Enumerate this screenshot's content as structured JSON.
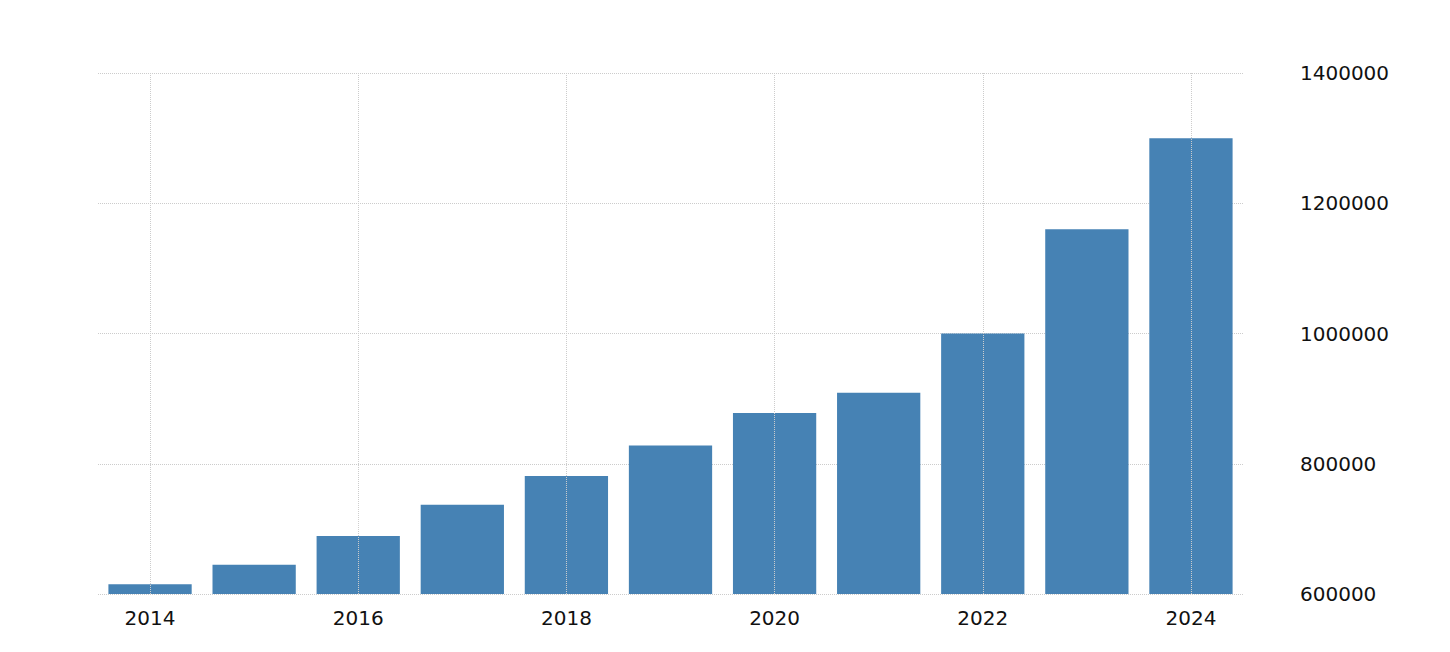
{
  "chart_data": {
    "type": "bar",
    "categories": [
      "2014",
      null,
      "2016",
      null,
      "2018",
      null,
      "2020",
      null,
      "2022",
      null,
      "2024"
    ],
    "values": [
      615000,
      645000,
      689000,
      737000,
      781000,
      828000,
      878000,
      909000,
      1000000,
      1160000,
      1300000
    ],
    "color": "#4682b4",
    "ylim": [
      600000,
      1400000
    ],
    "yticks": [
      600000,
      800000,
      1000000,
      1200000,
      1400000
    ],
    "grid": true
  }
}
